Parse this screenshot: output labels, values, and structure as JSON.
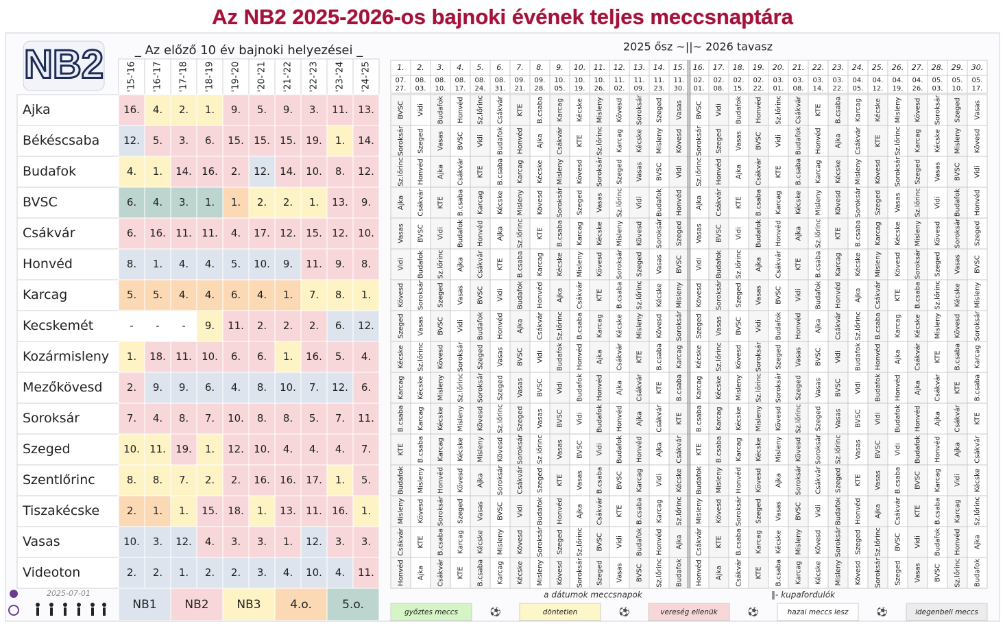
{
  "title": "Az NB2  2025-2026-os bajnoki évének teljes meccsnaptára",
  "logo": "NB2",
  "updated": "2025-07-01",
  "history": {
    "title": "_ Az előző 10 év bajnoki helyezései _",
    "seasons": [
      "'15-'16",
      "'16-'17",
      "'17-'18",
      "'18-'19",
      "'19-'20",
      "'20-'21",
      "'21-'22",
      "'22-'23",
      "'23-'24",
      "'24-'25"
    ],
    "tiers": [
      {
        "label": "NB1",
        "color": "#dde4ee"
      },
      {
        "label": "NB2",
        "color": "#f8d7da"
      },
      {
        "label": "NB3",
        "color": "#fdf3c4"
      },
      {
        "label": "4.o.",
        "color": "#fbd9b5"
      },
      {
        "label": "5.o.",
        "color": "#bcd6cf"
      }
    ]
  },
  "schedule": {
    "title": "2025 ősz  ~||~  2026 tavasz",
    "rounds": [
      {
        "number": "1.",
        "date": [
          "07.",
          "27."
        ]
      },
      {
        "number": "2.",
        "date": [
          "08.",
          "03."
        ]
      },
      {
        "number": "3.",
        "date": [
          "08.",
          "10."
        ]
      },
      {
        "number": "4.",
        "date": [
          "08.",
          "17."
        ]
      },
      {
        "number": "5.",
        "date": [
          "08.",
          "24."
        ]
      },
      {
        "number": "6.",
        "date": [
          "08.",
          "31."
        ]
      },
      {
        "number": "7.",
        "date": [
          "09.",
          "21."
        ]
      },
      {
        "number": "8.",
        "date": [
          "09.",
          "28."
        ]
      },
      {
        "number": "9.",
        "date": [
          "10.",
          "05."
        ]
      },
      {
        "number": "10.",
        "date": [
          "10.",
          "19."
        ]
      },
      {
        "number": "11.",
        "date": [
          "10.",
          "26."
        ]
      },
      {
        "number": "12.",
        "date": [
          "11.",
          "02."
        ]
      },
      {
        "number": "13.",
        "date": [
          "11.",
          "09."
        ]
      },
      {
        "number": "14.",
        "date": [
          "11.",
          "23."
        ]
      },
      {
        "number": "15.",
        "date": [
          "11.",
          "30."
        ]
      },
      {
        "number": "16.",
        "date": [
          "02.",
          "01."
        ]
      },
      {
        "number": "17.",
        "date": [
          "02.",
          "08."
        ]
      },
      {
        "number": "18.",
        "date": [
          "02.",
          "15."
        ]
      },
      {
        "number": "19.",
        "date": [
          "02.",
          "22."
        ]
      },
      {
        "number": "20.",
        "date": [
          "03.",
          "01."
        ]
      },
      {
        "number": "21.",
        "date": [
          "03.",
          "08."
        ]
      },
      {
        "number": "22.",
        "date": [
          "03.",
          "14."
        ]
      },
      {
        "number": "23.",
        "date": [
          "03.",
          "22."
        ]
      },
      {
        "number": "24.",
        "date": [
          "04.",
          "05."
        ]
      },
      {
        "number": "25.",
        "date": [
          "04.",
          "12."
        ]
      },
      {
        "number": "26.",
        "date": [
          "04.",
          "19."
        ]
      },
      {
        "number": "27.",
        "date": [
          "04.",
          "26."
        ]
      },
      {
        "number": "28.",
        "date": [
          "05.",
          "03."
        ]
      },
      {
        "number": "29.",
        "date": [
          "05.",
          "10."
        ]
      },
      {
        "number": "30.",
        "date": [
          "05.",
          "17."
        ]
      }
    ],
    "date_note": "a dátumok meccsnapok",
    "cup_note": "‖- kupafordulók"
  },
  "teams": [
    {
      "name": "Ajka",
      "places": [
        "16.",
        "4.",
        "2.",
        "1.",
        "9.",
        "5.",
        "9.",
        "3.",
        "11.",
        "13."
      ],
      "tiers": [
        1,
        2,
        2,
        2,
        1,
        1,
        1,
        1,
        1,
        1
      ],
      "opponents": [
        "BVSC",
        "Vidi",
        "Budafok",
        "Honvéd",
        "Sz.lőrinc",
        "Csákvár",
        "KTE",
        "B.csaba",
        "Karcag",
        "Kécske",
        "Misleny",
        "Kövesd",
        "Soroksár",
        "Szeged",
        "Vasas",
        "BVSC",
        "Vidi",
        "Budafok",
        "Honvéd",
        "Sz.lőrinc",
        "Csákvár",
        "KTE",
        "B.csaba",
        "Karcag",
        "Kécske",
        "Misleny",
        "Kövesd",
        "Soroksár",
        "Szeged",
        "Vasas"
      ]
    },
    {
      "name": "Békéscsaba",
      "places": [
        "12.",
        "5.",
        "3.",
        "6.",
        "15.",
        "15.",
        "15.",
        "19.",
        "1.",
        "14."
      ],
      "tiers": [
        0,
        1,
        1,
        1,
        1,
        1,
        1,
        1,
        2,
        1
      ],
      "opponents": [
        "Soroksár",
        "Szeged",
        "Vasas",
        "BVSC",
        "Vidi",
        "Budafok",
        "Honvéd",
        "Ajka",
        "Csákvár",
        "KTE",
        "Sz.lőrinc",
        "Karcag",
        "Kécske",
        "Misleny",
        "Kövesd",
        "Soroksár",
        "Szeged",
        "Vasas",
        "BVSC",
        "Vidi",
        "Budafok",
        "Honvéd",
        "Ajka",
        "Csákvár",
        "KTE",
        "Sz.lőrinc",
        "Karcag",
        "Kécske",
        "Misleny",
        "Kövesd"
      ]
    },
    {
      "name": "Budafok",
      "places": [
        "4.",
        "1.",
        "14.",
        "16.",
        "2.",
        "12.",
        "14.",
        "10.",
        "8.",
        "12."
      ],
      "tiers": [
        2,
        2,
        1,
        1,
        1,
        0,
        1,
        1,
        1,
        1
      ],
      "opponents": [
        "Sz.lőrinc",
        "Honvéd",
        "Ajka",
        "Csákvár",
        "KTE",
        "B.csaba",
        "Karcag",
        "Kécske",
        "Misleny",
        "Kövesd",
        "Soroksár",
        "Szeged",
        "Vasas",
        "BVSC",
        "Vidi",
        "Sz.lőrinc",
        "Honvéd",
        "Ajka",
        "Csákvár",
        "KTE",
        "B.csaba",
        "Karcag",
        "Kécske",
        "Misleny",
        "Kövesd",
        "Soroksár",
        "Szeged",
        "Vasas",
        "BVSC",
        "Vidi"
      ]
    },
    {
      "name": "BVSC",
      "places": [
        "6.",
        "4.",
        "3.",
        "1.",
        "1.",
        "2.",
        "2.",
        "1.",
        "13.",
        "9."
      ],
      "tiers": [
        4,
        4,
        4,
        4,
        3,
        2,
        2,
        2,
        1,
        1
      ],
      "opponents": [
        "Ajka",
        "Csákvár",
        "KTE",
        "B.csaba",
        "Karcag",
        "Kécske",
        "Misleny",
        "Kövesd",
        "Soroksár",
        "Szeged",
        "Vasas",
        "Sz.lőrinc",
        "Vidi",
        "Budafok",
        "Honvéd",
        "Ajka",
        "Csákvár",
        "KTE",
        "B.csaba",
        "Karcag",
        "Kécske",
        "Misleny",
        "Kövesd",
        "Soroksár",
        "Szeged",
        "Vasas",
        "Sz.lőrinc",
        "Vidi",
        "Budafok",
        "Honvéd"
      ]
    },
    {
      "name": "Csákvár",
      "places": [
        "6.",
        "16.",
        "11.",
        "11.",
        "4.",
        "17.",
        "12.",
        "15.",
        "12.",
        "10."
      ],
      "tiers": [
        1,
        1,
        1,
        1,
        1,
        1,
        1,
        1,
        1,
        1
      ],
      "opponents": [
        "Vasas",
        "BVSC",
        "Vidi",
        "Budafok",
        "Honvéd",
        "Ajka",
        "Sz.lőrinc",
        "KTE",
        "B.csaba",
        "Karcag",
        "Kécske",
        "Misleny",
        "Kövesd",
        "Soroksár",
        "Szeged",
        "Vasas",
        "BVSC",
        "Vidi",
        "Budafok",
        "Honvéd",
        "Ajka",
        "Sz.lőrinc",
        "KTE",
        "B.csaba",
        "Karcag",
        "Kécske",
        "Misleny",
        "Kövesd",
        "Soroksár",
        "Szeged"
      ]
    },
    {
      "name": "Honvéd",
      "places": [
        "8.",
        "1.",
        "4.",
        "4.",
        "5.",
        "10.",
        "9.",
        "11.",
        "9.",
        "8."
      ],
      "tiers": [
        0,
        0,
        0,
        0,
        0,
        0,
        0,
        1,
        1,
        1
      ],
      "opponents": [
        "Vidi",
        "Budafok",
        "Sz.lőrinc",
        "Ajka",
        "Csákvár",
        "KTE",
        "B.csaba",
        "Karcag",
        "Kécske",
        "Misleny",
        "Kövesd",
        "Soroksár",
        "Szeged",
        "Vasas",
        "BVSC",
        "Vidi",
        "Budafok",
        "Sz.lőrinc",
        "Ajka",
        "Csákvár",
        "KTE",
        "B.csaba",
        "Karcag",
        "Kécske",
        "Misleny",
        "Kövesd",
        "Soroksár",
        "Szeged",
        "Vasas",
        "BVSC"
      ]
    },
    {
      "name": "Karcag",
      "places": [
        "5.",
        "5.",
        "4.",
        "4.",
        "6.",
        "4.",
        "1.",
        "7.",
        "8.",
        "1."
      ],
      "tiers": [
        3,
        3,
        3,
        3,
        3,
        3,
        3,
        2,
        2,
        2
      ],
      "opponents": [
        "Kövesd",
        "Soroksár",
        "Szeged",
        "Vasas",
        "BVSC",
        "Vidi",
        "Budafok",
        "Honvéd",
        "Ajka",
        "Csákvár",
        "KTE",
        "B.csaba",
        "Sz.lőrinc",
        "Kécske",
        "Misleny",
        "Kövesd",
        "Soroksár",
        "Szeged",
        "Vasas",
        "BVSC",
        "Vidi",
        "Budafok",
        "Honvéd",
        "Ajka",
        "Csákvár",
        "KTE",
        "B.csaba",
        "Sz.lőrinc",
        "Kécske",
        "Misleny"
      ]
    },
    {
      "name": "Kecskemét",
      "places": [
        "-",
        "-",
        "-",
        "9.",
        "11.",
        "2.",
        "2.",
        "2.",
        "6.",
        "12."
      ],
      "tiers": [
        null,
        null,
        null,
        2,
        1,
        1,
        1,
        1,
        0,
        0
      ],
      "opponents": [
        "Szeged",
        "Vasas",
        "BVSC",
        "Vidi",
        "Budafok",
        "Honvéd",
        "Ajka",
        "Csákvár",
        "Sz.lőrinc",
        "B.csaba",
        "Karcag",
        "Kécske",
        "Misleny",
        "Kövesd",
        "Soroksár",
        "Szeged",
        "Vasas",
        "BVSC",
        "Vidi",
        "Budafok",
        "Honvéd",
        "Ajka",
        "Csákvár",
        "Sz.lőrinc",
        "B.csaba",
        "Karcag",
        "Kécske",
        "Misleny",
        "Kövesd",
        "Soroksár"
      ]
    },
    {
      "name": "Kozármisleny",
      "places": [
        "1.",
        "18.",
        "11.",
        "10.",
        "6.",
        "6.",
        "1.",
        "16.",
        "5.",
        "4."
      ],
      "tiers": [
        2,
        1,
        1,
        1,
        1,
        1,
        2,
        1,
        1,
        1
      ],
      "opponents": [
        "Kécske",
        "Sz.lőrinc",
        "Kövesd",
        "Soroksár",
        "Szeged",
        "Vasas",
        "BVSC",
        "Vidi",
        "Budafok",
        "Honvéd",
        "Ajka",
        "Csákvár",
        "KTE",
        "B.csaba",
        "Karcag",
        "Kécske",
        "Sz.lőrinc",
        "Kövesd",
        "Soroksár",
        "Szeged",
        "Vasas",
        "BVSC",
        "Vidi",
        "Budafok",
        "Honvéd",
        "Ajka",
        "Csákvár",
        "KTE",
        "B.csaba",
        "Karcag"
      ]
    },
    {
      "name": "Mezőkövesd",
      "places": [
        "2.",
        "9.",
        "9.",
        "6.",
        "4.",
        "8.",
        "10.",
        "7.",
        "12.",
        "6."
      ],
      "tiers": [
        1,
        0,
        0,
        0,
        0,
        0,
        0,
        0,
        0,
        1
      ],
      "opponents": [
        "Karcag",
        "Kécske",
        "Misleny",
        "Sz.lőrinc",
        "Soroksár",
        "Szeged",
        "Vasas",
        "BVSC",
        "Vidi",
        "Budafok",
        "Honvéd",
        "Ajka",
        "Csákvár",
        "KTE",
        "B.csaba",
        "Karcag",
        "Kécske",
        "Misleny",
        "Sz.lőrinc",
        "Soroksár",
        "Szeged",
        "Vasas",
        "BVSC",
        "Vidi",
        "Budafok",
        "Honvéd",
        "Ajka",
        "Csákvár",
        "KTE",
        "B.csaba"
      ]
    },
    {
      "name": "Soroksár",
      "places": [
        "7.",
        "4.",
        "8.",
        "7.",
        "10.",
        "8.",
        "8.",
        "5.",
        "7.",
        "11."
      ],
      "tiers": [
        1,
        1,
        1,
        1,
        1,
        1,
        1,
        1,
        1,
        1
      ],
      "opponents": [
        "B.csaba",
        "Karcag",
        "Kécske",
        "Misleny",
        "Kövesd",
        "Sz.lőrinc",
        "Szeged",
        "Vasas",
        "BVSC",
        "Vidi",
        "Budafok",
        "Honvéd",
        "Ajka",
        "Csákvár",
        "KTE",
        "B.csaba",
        "Karcag",
        "Kécske",
        "Misleny",
        "Kövesd",
        "Sz.lőrinc",
        "Szeged",
        "Vasas",
        "BVSC",
        "Vidi",
        "Budafok",
        "Honvéd",
        "Ajka",
        "Csákvár",
        "KTE"
      ]
    },
    {
      "name": "Szeged",
      "places": [
        "10.",
        "11.",
        "19.",
        "1.",
        "12.",
        "10.",
        "4.",
        "4.",
        "4.",
        "7."
      ],
      "tiers": [
        2,
        2,
        1,
        2,
        1,
        1,
        1,
        1,
        1,
        1
      ],
      "opponents": [
        "KTE",
        "B.csaba",
        "Karcag",
        "Kécske",
        "Misleny",
        "Kövesd",
        "Soroksár",
        "Sz.lőrinc",
        "Vasas",
        "BVSC",
        "Vidi",
        "Budafok",
        "Honvéd",
        "Ajka",
        "Csákvár",
        "KTE",
        "B.csaba",
        "Karcag",
        "Kécske",
        "Misleny",
        "Kövesd",
        "Soroksár",
        "Sz.lőrinc",
        "Vasas",
        "BVSC",
        "Vidi",
        "Budafok",
        "Honvéd",
        "Ajka",
        "Csákvár"
      ]
    },
    {
      "name": "Szentlőrinc",
      "places": [
        "8.",
        "8.",
        "7.",
        "2.",
        "2.",
        "16.",
        "16.",
        "17.",
        "1.",
        "5."
      ],
      "tiers": [
        2,
        2,
        2,
        2,
        1,
        1,
        1,
        1,
        2,
        1
      ],
      "opponents": [
        "Budafok",
        "Misleny",
        "Honvéd",
        "Kövesd",
        "Ajka",
        "Soroksár",
        "Csákvár",
        "Szeged",
        "KTE",
        "Vasas",
        "B.csaba",
        "BVSC",
        "Karcag",
        "Vidi",
        "Kécske",
        "Budafok",
        "Misleny",
        "Honvéd",
        "Kövesd",
        "Ajka",
        "Soroksár",
        "Csákvár",
        "Szeged",
        "KTE",
        "Vasas",
        "B.csaba",
        "BVSC",
        "Karcag",
        "Vidi",
        "Kécske"
      ]
    },
    {
      "name": "Tiszakécske",
      "places": [
        "2.",
        "1.",
        "1.",
        "15.",
        "18.",
        "1.",
        "13.",
        "11.",
        "16.",
        "1."
      ],
      "tiers": [
        3,
        3,
        2,
        1,
        1,
        2,
        1,
        1,
        1,
        2
      ],
      "opponents": [
        "Misleny",
        "Kövesd",
        "Soroksár",
        "Szeged",
        "Vasas",
        "BVSC",
        "Vidi",
        "Budafok",
        "Honvéd",
        "Ajka",
        "Csákvár",
        "KTE",
        "B.csaba",
        "Karcag",
        "Sz.lőrinc",
        "Misleny",
        "Kövesd",
        "Soroksár",
        "Szeged",
        "Vasas",
        "BVSC",
        "Vidi",
        "Budafok",
        "Honvéd",
        "Ajka",
        "Csákvár",
        "KTE",
        "B.csaba",
        "Karcag",
        "Sz.lőrinc"
      ]
    },
    {
      "name": "Vasas",
      "places": [
        "10.",
        "3.",
        "12.",
        "4.",
        "3.",
        "3.",
        "1.",
        "12.",
        "3.",
        "3."
      ],
      "tiers": [
        0,
        0,
        0,
        1,
        1,
        1,
        1,
        0,
        1,
        1
      ],
      "opponents": [
        "Csákvár",
        "KTE",
        "B.csaba",
        "Karcag",
        "Kécske",
        "Misleny",
        "Kövesd",
        "Soroksár",
        "Szeged",
        "Sz.lőrinc",
        "BVSC",
        "Vidi",
        "Budafok",
        "Honvéd",
        "Ajka",
        "Csákvár",
        "KTE",
        "B.csaba",
        "Karcag",
        "Kécske",
        "Misleny",
        "Kövesd",
        "Soroksár",
        "Szeged",
        "Sz.lőrinc",
        "BVSC",
        "Vidi",
        "Budafok",
        "Honvéd",
        "Ajka"
      ]
    },
    {
      "name": "Videoton",
      "places": [
        "2.",
        "2.",
        "1.",
        "2.",
        "2.",
        "3.",
        "4.",
        "10.",
        "4.",
        "11."
      ],
      "tiers": [
        0,
        0,
        0,
        0,
        0,
        0,
        0,
        0,
        0,
        1
      ],
      "opponents": [
        "Honvéd",
        "Ajka",
        "Csákvár",
        "KTE",
        "B.csaba",
        "Karcag",
        "Kécske",
        "Misleny",
        "Kövesd",
        "Soroksár",
        "Szeged",
        "Vasas",
        "BVSC",
        "Sz.lőrinc",
        "Budafok",
        "Honvéd",
        "Ajka",
        "Csákvár",
        "KTE",
        "B.csaba",
        "Karcag",
        "Kécske",
        "Misleny",
        "Kövesd",
        "Soroksár",
        "Szeged",
        "Vasas",
        "BVSC",
        "Sz.lőrinc",
        "Budafok"
      ]
    }
  ],
  "legend": [
    {
      "label": "győztes meccs",
      "color": "#d6f5c6"
    },
    {
      "label": "⚽"
    },
    {
      "label": "döntetlen",
      "color": "#fdf6c8"
    },
    {
      "label": "⚽"
    },
    {
      "label": "vereség ellenük",
      "color": "#f8d7da"
    },
    {
      "label": "⚽"
    },
    {
      "label": "hazai meccs lesz",
      "color": "#ffffff"
    },
    {
      "label": "⚽"
    },
    {
      "label": "idegenbeli meccs",
      "color": "#ececec"
    }
  ]
}
